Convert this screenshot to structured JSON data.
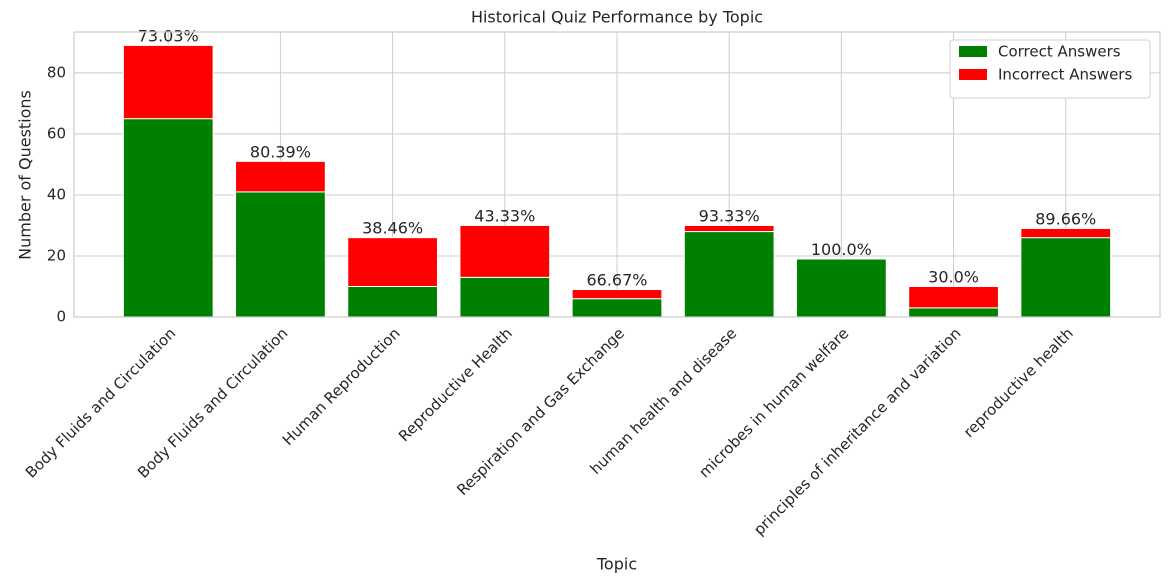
{
  "chart_data": {
    "type": "bar",
    "stacked": true,
    "title": "Historical Quiz Performance by Topic",
    "x_label": "Topic",
    "y_label": "Number of Questions",
    "categories": [
      "Body Fluids and Circulation",
      "Body Fluids and Circulation",
      "Human Reproduction",
      "Reproductive Health",
      "Respiration and Gas Exchange",
      "human health and disease",
      "microbes in human welfare",
      "principles of inheritance and variation",
      "reproductive health"
    ],
    "series": [
      {
        "name": "Correct Answers",
        "color": "#008000",
        "values": [
          65,
          41,
          10,
          13,
          6,
          28,
          19,
          3,
          26
        ]
      },
      {
        "name": "Incorrect Answers",
        "color": "#ff0000",
        "values": [
          24,
          10,
          16,
          17,
          3,
          2,
          0,
          7,
          3
        ]
      }
    ],
    "percent_labels": [
      "73.03%",
      "80.39%",
      "38.46%",
      "43.33%",
      "66.67%",
      "93.33%",
      "100.0%",
      "30.0%",
      "89.66%"
    ],
    "ylim": [
      0,
      93.4
    ],
    "yticks": [
      0,
      20,
      40,
      60,
      80
    ],
    "grid": true,
    "legend": "upper right"
  }
}
